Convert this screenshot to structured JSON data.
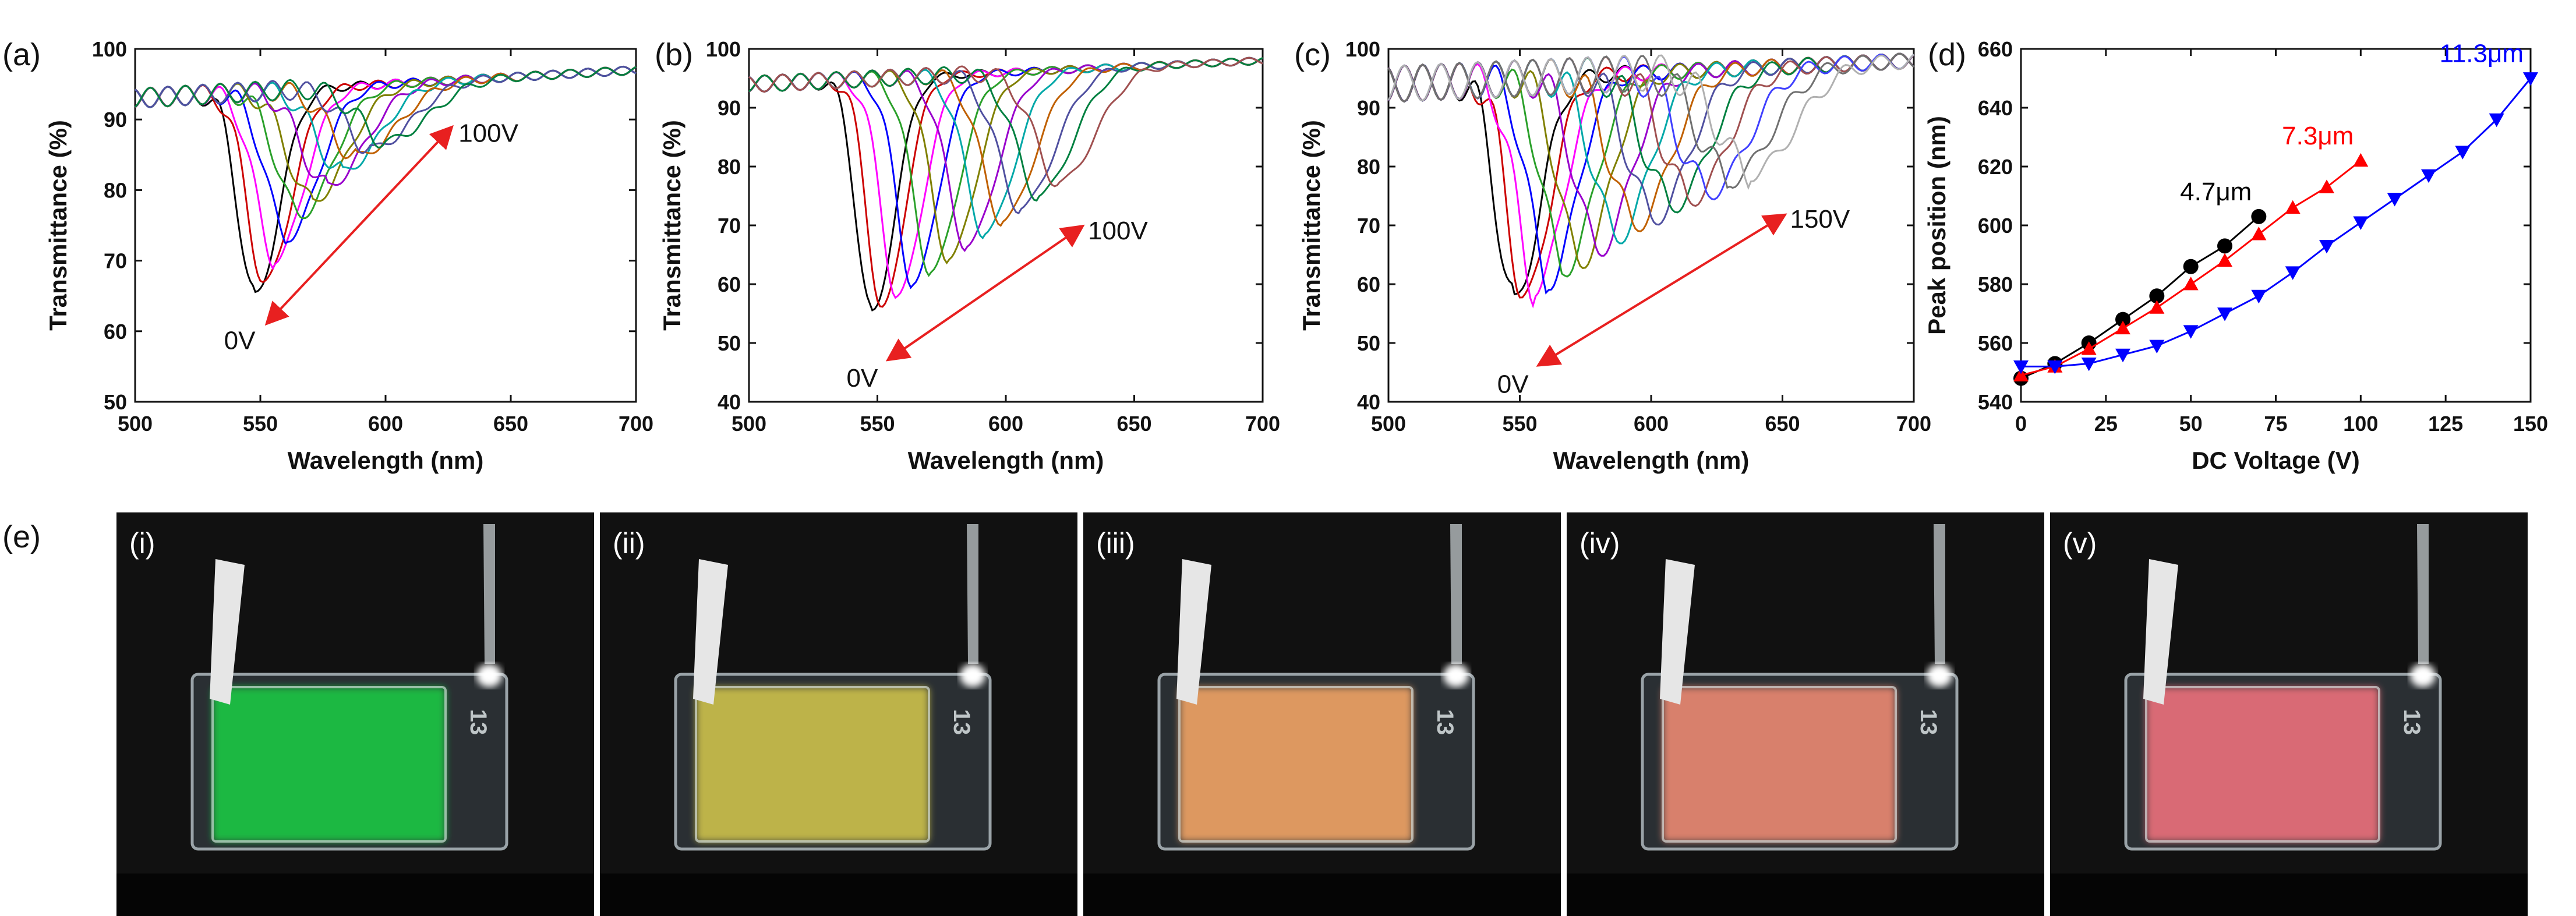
{
  "panel_labels": {
    "a": "(a)",
    "b": "(b)",
    "c": "(c)",
    "d": "(d)",
    "e": "(e)"
  },
  "colors": {
    "arrow": "#e82020",
    "s47": "#000000",
    "s73": "#ff0000",
    "s113": "#0000ff",
    "photo_bg": "#111111"
  },
  "chart_data": [
    {
      "id": "a",
      "type": "line",
      "title": "",
      "xlabel": "Wavelength (nm)",
      "ylabel": "Transmittance (%)",
      "xlim": [
        500,
        700
      ],
      "ylim": [
        50,
        100
      ],
      "xticks": [
        500,
        550,
        600,
        650,
        700
      ],
      "yticks": [
        50,
        60,
        70,
        80,
        90,
        100
      ],
      "annotations": {
        "start": "0V",
        "end": "100V"
      },
      "arrow": {
        "from": [
          555,
          62
        ],
        "to": [
          624,
          88
        ]
      },
      "series_style": "rainbow transmission dips shifting to longer wavelength with voltage",
      "dips": [
        {
          "center": 548,
          "depth": 29,
          "width": 11
        },
        {
          "center": 552,
          "depth": 27,
          "width": 12
        },
        {
          "center": 556,
          "depth": 24,
          "width": 13
        },
        {
          "center": 561,
          "depth": 21,
          "width": 14
        },
        {
          "center": 566,
          "depth": 18,
          "width": 15
        },
        {
          "center": 571,
          "depth": 16,
          "width": 16
        },
        {
          "center": 577,
          "depth": 14,
          "width": 17
        },
        {
          "center": 583,
          "depth": 12,
          "width": 17
        },
        {
          "center": 589,
          "depth": 10,
          "width": 18
        },
        {
          "center": 595,
          "depth": 9,
          "width": 18
        },
        {
          "center": 601,
          "depth": 8,
          "width": 19
        }
      ]
    },
    {
      "id": "b",
      "type": "line",
      "title": "",
      "xlabel": "Wavelength (nm)",
      "ylabel": "Transmittance (%)",
      "xlim": [
        500,
        700
      ],
      "ylim": [
        40,
        100
      ],
      "xticks": [
        500,
        550,
        600,
        650,
        700
      ],
      "yticks": [
        40,
        50,
        60,
        70,
        80,
        90,
        100
      ],
      "annotations": {
        "start": "0V",
        "end": "100V"
      },
      "arrow": {
        "from": [
          557,
          48
        ],
        "to": [
          627,
          69
        ]
      },
      "series_style": "rainbow transmission dips shifting to longer wavelength with voltage",
      "dips": [
        {
          "center": 548,
          "depth": 40,
          "width": 10
        },
        {
          "center": 552,
          "depth": 39,
          "width": 10
        },
        {
          "center": 558,
          "depth": 37,
          "width": 11
        },
        {
          "center": 564,
          "depth": 35,
          "width": 11
        },
        {
          "center": 571,
          "depth": 33,
          "width": 12
        },
        {
          "center": 578,
          "depth": 31,
          "width": 12
        },
        {
          "center": 585,
          "depth": 29,
          "width": 13
        },
        {
          "center": 592,
          "depth": 27,
          "width": 13
        },
        {
          "center": 599,
          "depth": 25,
          "width": 14
        },
        {
          "center": 606,
          "depth": 23,
          "width": 15
        },
        {
          "center": 613,
          "depth": 21,
          "width": 15
        },
        {
          "center": 621,
          "depth": 19,
          "width": 16
        }
      ]
    },
    {
      "id": "c",
      "type": "line",
      "title": "",
      "xlabel": "Wavelength (nm)",
      "ylabel": "Transmittance (%)",
      "xlim": [
        500,
        700
      ],
      "ylim": [
        40,
        100
      ],
      "xticks": [
        500,
        550,
        600,
        650,
        700
      ],
      "yticks": [
        40,
        50,
        60,
        70,
        80,
        90,
        100
      ],
      "annotations": {
        "start": "0V",
        "end": "150V"
      },
      "arrow": {
        "from": [
          560,
          47
        ],
        "to": [
          648,
          71
        ]
      },
      "series_style": "rainbow transmission dips shifting to longer wavelength with voltage",
      "dips": [
        {
          "center": 548,
          "depth": 38,
          "width": 11
        },
        {
          "center": 552,
          "depth": 37,
          "width": 11
        },
        {
          "center": 556,
          "depth": 36,
          "width": 12
        },
        {
          "center": 561,
          "depth": 35,
          "width": 12
        },
        {
          "center": 567,
          "depth": 33,
          "width": 13
        },
        {
          "center": 573,
          "depth": 32,
          "width": 13
        },
        {
          "center": 580,
          "depth": 30,
          "width": 14
        },
        {
          "center": 587,
          "depth": 28,
          "width": 14
        },
        {
          "center": 594,
          "depth": 26,
          "width": 15
        },
        {
          "center": 601,
          "depth": 25,
          "width": 15
        },
        {
          "center": 608,
          "depth": 23,
          "width": 16
        },
        {
          "center": 615,
          "depth": 22,
          "width": 16
        },
        {
          "center": 622,
          "depth": 21,
          "width": 17
        },
        {
          "center": 630,
          "depth": 19,
          "width": 18
        },
        {
          "center": 638,
          "depth": 18,
          "width": 19
        }
      ]
    },
    {
      "id": "d",
      "type": "line",
      "title": "",
      "xlabel": "DC Voltage (V)",
      "ylabel": "Peak position (nm)",
      "xlim": [
        0,
        150
      ],
      "ylim": [
        540,
        660
      ],
      "xticks": [
        0,
        25,
        50,
        75,
        100,
        125,
        150
      ],
      "yticks": [
        540,
        560,
        580,
        600,
        620,
        640,
        660
      ],
      "series": [
        {
          "name": "4.7μm",
          "color": "#000000",
          "marker": "circle",
          "x": [
            0,
            10,
            20,
            30,
            40,
            50,
            60,
            70
          ],
          "y": [
            548,
            553,
            560,
            568,
            576,
            586,
            593,
            603
          ]
        },
        {
          "name": "7.3μm",
          "color": "#ff0000",
          "marker": "triangle-up",
          "x": [
            0,
            10,
            20,
            30,
            40,
            50,
            60,
            70,
            80,
            90,
            100
          ],
          "y": [
            549,
            552,
            558,
            565,
            572,
            580,
            588,
            597,
            606,
            613,
            622
          ]
        },
        {
          "name": "11.3μm",
          "color": "#0000ff",
          "marker": "triangle-down",
          "x": [
            0,
            10,
            20,
            30,
            40,
            50,
            60,
            70,
            80,
            90,
            100,
            110,
            120,
            130,
            140,
            150
          ],
          "y": [
            552,
            552,
            553,
            556,
            559,
            564,
            570,
            576,
            584,
            593,
            601,
            609,
            617,
            625,
            636,
            650
          ]
        }
      ]
    }
  ],
  "photos": [
    {
      "label": "(i)",
      "color": "#1fb843",
      "cell_number": "13"
    },
    {
      "label": "(ii)",
      "color": "#bdb348",
      "cell_number": "13"
    },
    {
      "label": "(iii)",
      "color": "#dd9860",
      "cell_number": "13"
    },
    {
      "label": "(iv)",
      "color": "#d8806c",
      "cell_number": "13"
    },
    {
      "label": "(v)",
      "color": "#d96a74",
      "cell_number": "13"
    }
  ]
}
